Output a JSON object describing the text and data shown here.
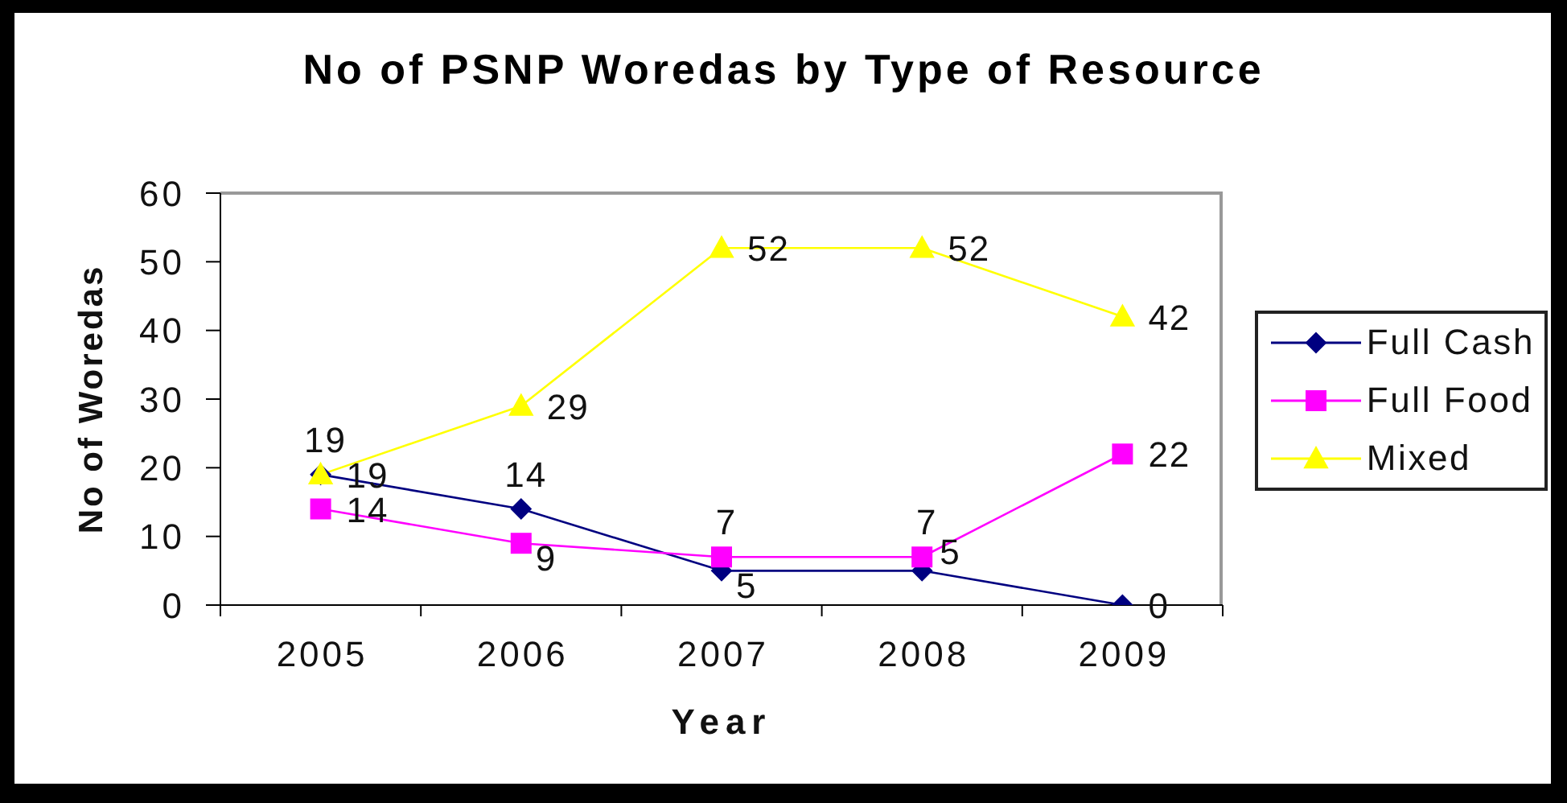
{
  "chart_data": {
    "type": "line",
    "title": "No of PSNP Woredas by Type of Resource",
    "xlabel": "Year",
    "ylabel": "No of Woredas",
    "categories": [
      "2005",
      "2006",
      "2007",
      "2008",
      "2009"
    ],
    "series": [
      {
        "name": "Full Cash",
        "color": "#000080",
        "marker": "diamond",
        "values": [
          19,
          14,
          5,
          5,
          0
        ]
      },
      {
        "name": "Full Food",
        "color": "#ff00ff",
        "marker": "square",
        "values": [
          14,
          9,
          7,
          7,
          22
        ]
      },
      {
        "name": "Mixed",
        "color": "#ffff00",
        "marker": "triangle",
        "values": [
          19,
          29,
          52,
          52,
          42
        ]
      }
    ],
    "ylim": [
      0,
      60
    ],
    "yticks": [
      0,
      10,
      20,
      30,
      40,
      50,
      60
    ],
    "legend": "right",
    "data_labels": true,
    "line_style": "solid"
  }
}
